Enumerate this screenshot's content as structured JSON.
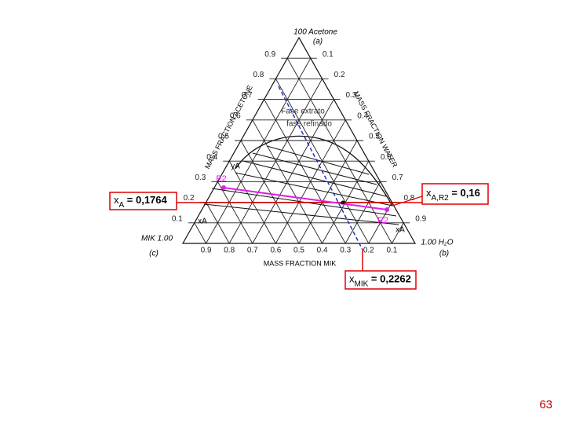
{
  "diagram": {
    "apex_label": "100 Acetone",
    "apex_sub": "(a)",
    "left_label": "MIK 1.00",
    "left_sub": "(c)",
    "right_label": "1.00 H₂O",
    "right_sub": "(b)",
    "axis_acetone": "MASS FRACTION ACETONE",
    "axis_water": "MASS FRACTION WATER",
    "axis_mik": "MASS FRACTION MIK",
    "acetone_ticks": [
      "0.9",
      "0.8",
      "0.7",
      "0.6",
      "0.5",
      "0.4",
      "0.3",
      "0.2",
      "0.1"
    ],
    "water_ticks": [
      "0.1",
      "0.2",
      "0.3",
      "0.4",
      "0.5",
      "0.6",
      "0.7",
      "0.8",
      "0.9"
    ],
    "mik_ticks": [
      "0.9",
      "0.8",
      "0.7",
      "0.6",
      "0.5",
      "0.4",
      "0.3",
      "0.2",
      "0.1"
    ],
    "phase_extract": "Fase extrato",
    "phase_raffinate": "fase refinado",
    "point_e": "E2",
    "point_r": "R2",
    "label_ya": "yA",
    "label_xa": "xA",
    "label_xa_left": "xA"
  },
  "annotations": {
    "xa": {
      "symbol": "x",
      "sub": "A",
      "value": " = 0,1764"
    },
    "xar2": {
      "symbol": "x",
      "sub": "A,R2",
      "value": " = 0,16"
    },
    "xmik": {
      "symbol": "x",
      "sub": "MIK",
      "value": " = 0,2262"
    }
  },
  "footer": {
    "page_number": "63"
  }
}
